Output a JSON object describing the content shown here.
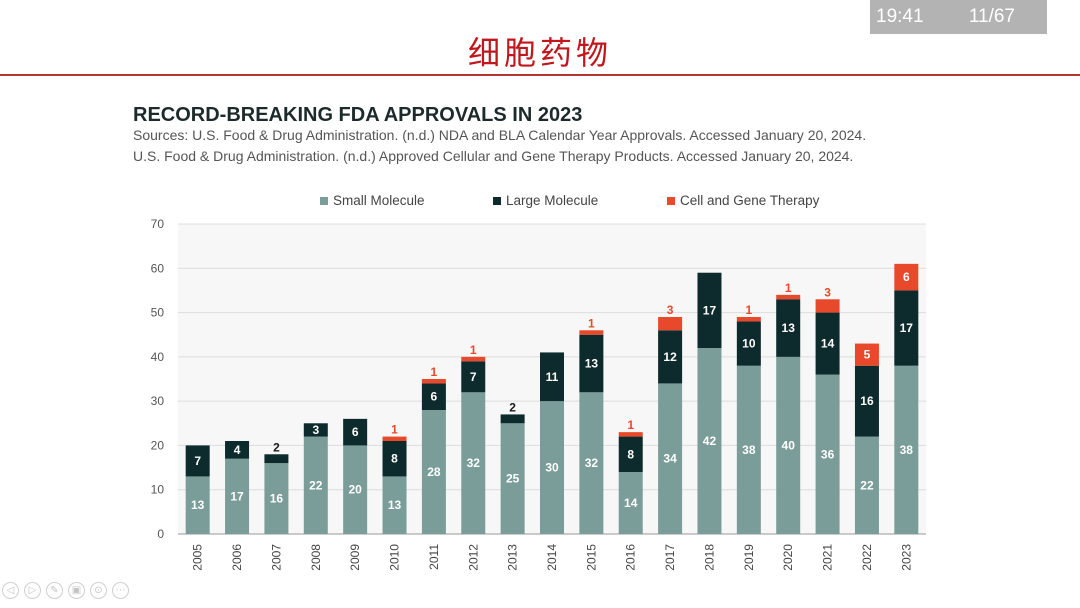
{
  "slide": {
    "title": "细胞药物"
  },
  "overlay": {
    "time": "19:41",
    "page": "11/67"
  },
  "chart_heading": "RECORD-BREAKING FDA APPROVALS IN 2023",
  "sources": [
    "Sources: U.S. Food & Drug Administration. (n.d.) NDA and BLA Calendar Year Approvals. Accessed January 20, 2024.",
    "U.S. Food & Drug Administration. (n.d.) Approved Cellular and Gene Therapy Products. Accessed January 20, 2024."
  ],
  "colors": {
    "small": "#7a9d99",
    "large": "#0d2a2c",
    "cgt": "#e8492a",
    "title_red": "#c0171d"
  },
  "toolbar": [
    {
      "name": "back-icon",
      "glyph": "◁"
    },
    {
      "name": "forward-icon",
      "glyph": "▷"
    },
    {
      "name": "pen-icon",
      "glyph": "✎"
    },
    {
      "name": "slides-icon",
      "glyph": "▣"
    },
    {
      "name": "zoom-icon",
      "glyph": "⊙"
    },
    {
      "name": "more-icon",
      "glyph": "⋯"
    }
  ],
  "chart_data": {
    "type": "bar",
    "stacked": true,
    "categories": [
      "2005",
      "2006",
      "2007",
      "2008",
      "2009",
      "2010",
      "2011",
      "2012",
      "2013",
      "2014",
      "2015",
      "2016",
      "2017",
      "2018",
      "2019",
      "2020",
      "2021",
      "2022",
      "2023"
    ],
    "series": [
      {
        "name": "Small Molecule",
        "values": [
          13,
          17,
          16,
          22,
          20,
          13,
          28,
          32,
          25,
          30,
          32,
          14,
          34,
          42,
          38,
          40,
          36,
          22,
          38
        ]
      },
      {
        "name": "Large Molecule",
        "values": [
          7,
          4,
          2,
          3,
          6,
          8,
          6,
          7,
          2,
          11,
          13,
          8,
          12,
          17,
          10,
          13,
          14,
          16,
          17
        ]
      },
      {
        "name": "Cell and Gene Therapy",
        "values": [
          0,
          0,
          0,
          0,
          0,
          1,
          1,
          1,
          0,
          0,
          1,
          1,
          3,
          0,
          1,
          1,
          3,
          5,
          6
        ]
      }
    ],
    "ylim": [
      0,
      70
    ],
    "yticks": [
      0,
      10,
      20,
      30,
      40,
      50,
      60,
      70
    ],
    "grid": true,
    "legend": "top"
  }
}
